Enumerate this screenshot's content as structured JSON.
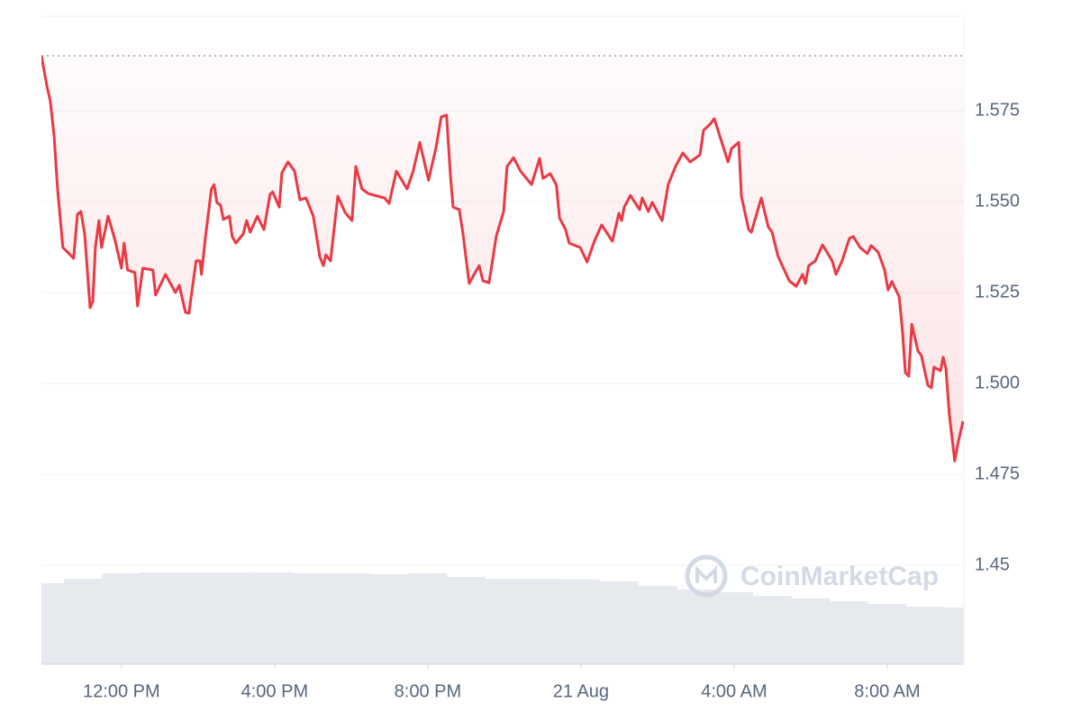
{
  "chart_data": {
    "type": "line",
    "watermark": "CoinMarketCap",
    "color": "#ea3943",
    "baseline": 1.5901,
    "xlim": [
      9.91,
      34.0
    ],
    "xticks": [
      {
        "value": 12,
        "label": "12:00 PM"
      },
      {
        "value": 16,
        "label": "4:00 PM"
      },
      {
        "value": 20,
        "label": "8:00 PM"
      },
      {
        "value": 24,
        "label": "21 Aug"
      },
      {
        "value": 28,
        "label": "4:00 AM"
      },
      {
        "value": 32,
        "label": "8:00 AM"
      }
    ],
    "ylim": [
      1.4228,
      1.601
    ],
    "yticks": [
      1.45,
      1.475,
      {
        "value": 1.5,
        "label": "1.500"
      },
      1.525,
      {
        "value": 1.55,
        "label": "1.550"
      },
      1.575
    ],
    "grid": true,
    "series": [
      {
        "x": [
          9.91,
          10.05,
          10.14,
          10.24,
          10.33,
          10.47,
          10.66,
          10.75,
          10.85,
          10.94,
          11.04,
          11.18,
          11.25,
          11.32,
          11.41,
          11.48,
          11.65,
          11.84,
          12.0,
          12.07,
          12.16,
          12.35,
          12.42,
          12.56,
          12.82,
          12.89,
          13.15,
          13.41,
          13.51,
          13.67,
          13.76,
          13.95,
          14.05,
          14.09,
          14.19,
          14.35,
          14.42,
          14.49,
          14.59,
          14.66,
          14.82,
          14.89,
          14.99,
          15.18,
          15.27,
          15.36,
          15.55,
          15.72,
          15.88,
          15.95,
          16.12,
          16.19,
          16.35,
          16.52,
          16.66,
          16.82,
          17.01,
          17.18,
          17.27,
          17.34,
          17.46,
          17.65,
          17.84,
          18.02,
          18.12,
          18.28,
          18.45,
          18.87,
          18.99,
          19.18,
          19.46,
          19.62,
          19.79,
          20.02,
          20.21,
          20.35,
          20.49,
          20.59,
          20.66,
          20.82,
          20.92,
          21.08,
          21.25,
          21.34,
          21.44,
          21.6,
          21.79,
          21.98,
          22.07,
          22.24,
          22.42,
          22.71,
          22.92,
          23.01,
          23.2,
          23.36,
          23.44,
          23.6,
          23.69,
          23.98,
          24.16,
          24.35,
          24.54,
          24.82,
          24.99,
          25.06,
          25.13,
          25.29,
          25.53,
          25.6,
          25.76,
          25.86,
          26.12,
          26.28,
          26.47,
          26.66,
          26.85,
          27.11,
          27.2,
          27.39,
          27.48,
          27.67,
          27.84,
          27.93,
          28.12,
          28.19,
          28.38,
          28.45,
          28.71,
          28.89,
          28.99,
          29.15,
          29.44,
          29.62,
          29.79,
          29.86,
          29.95,
          30.12,
          30.31,
          30.56,
          30.66,
          30.82,
          31.01,
          31.11,
          31.29,
          31.48,
          31.58,
          31.76,
          31.93,
          32.02,
          32.12,
          32.31,
          32.4,
          32.47,
          32.56,
          32.64,
          32.8,
          32.89,
          33.06,
          33.15,
          33.22,
          33.39,
          33.46,
          33.53,
          33.62,
          33.76,
          33.86,
          33.98
        ],
        "values": [
          1.5901,
          1.5819,
          1.5777,
          1.5683,
          1.5535,
          1.5374,
          1.5354,
          1.5344,
          1.5465,
          1.5473,
          1.5411,
          1.5208,
          1.5225,
          1.5374,
          1.5448,
          1.5374,
          1.546,
          1.5391,
          1.5317,
          1.5386,
          1.5312,
          1.5305,
          1.5213,
          1.5317,
          1.5312,
          1.5243,
          1.53,
          1.525,
          1.527,
          1.5196,
          1.5193,
          1.5337,
          1.5337,
          1.53,
          1.5399,
          1.5535,
          1.5547,
          1.5498,
          1.549,
          1.5451,
          1.546,
          1.5404,
          1.5386,
          1.5411,
          1.5448,
          1.5416,
          1.546,
          1.5423,
          1.552,
          1.5527,
          1.5485,
          1.5579,
          1.5609,
          1.5584,
          1.5505,
          1.551,
          1.546,
          1.5349,
          1.5324,
          1.5354,
          1.5337,
          1.5515,
          1.547,
          1.5448,
          1.5597,
          1.5535,
          1.5522,
          1.551,
          1.5495,
          1.5584,
          1.5535,
          1.5584,
          1.5663,
          1.5559,
          1.5646,
          1.5733,
          1.5738,
          1.5572,
          1.5485,
          1.5478,
          1.5411,
          1.5275,
          1.5307,
          1.5324,
          1.5282,
          1.5277,
          1.5406,
          1.5473,
          1.5597,
          1.5621,
          1.5584,
          1.5547,
          1.5619,
          1.5564,
          1.5577,
          1.5545,
          1.5455,
          1.5423,
          1.5386,
          1.5374,
          1.5334,
          1.5391,
          1.5436,
          1.5391,
          1.5468,
          1.5448,
          1.5485,
          1.5517,
          1.5478,
          1.551,
          1.5473,
          1.5498,
          1.5448,
          1.5547,
          1.5597,
          1.5634,
          1.5609,
          1.5629,
          1.5696,
          1.5715,
          1.5728,
          1.5666,
          1.5609,
          1.5646,
          1.5663,
          1.5515,
          1.5423,
          1.5416,
          1.551,
          1.5431,
          1.5416,
          1.5349,
          1.5282,
          1.5267,
          1.53,
          1.5275,
          1.5324,
          1.5337,
          1.5381,
          1.5337,
          1.53,
          1.5337,
          1.5399,
          1.5404,
          1.5374,
          1.5357,
          1.5379,
          1.5361,
          1.5312,
          1.5257,
          1.528,
          1.5238,
          1.5139,
          1.503,
          1.502,
          1.5163,
          1.5089,
          1.5077,
          1.4995,
          1.4988,
          1.5045,
          1.5035,
          1.5072,
          1.5042,
          1.4916,
          1.4787,
          1.4842,
          1.4896
        ]
      }
    ],
    "volume": {
      "color": "#e6e9ee",
      "lim": [
        0,
        120
      ],
      "x": [
        10,
        11,
        12,
        13,
        14,
        15,
        16,
        17,
        18,
        19,
        20,
        21,
        22,
        23,
        24,
        25,
        26,
        27,
        28,
        29,
        30,
        31,
        32,
        33,
        34
      ],
      "values": [
        90,
        95,
        101,
        102,
        102,
        102,
        102,
        101,
        101,
        100,
        101,
        97,
        95,
        95,
        94,
        92,
        87,
        83,
        80,
        76,
        73,
        70,
        67,
        64,
        63
      ]
    }
  }
}
